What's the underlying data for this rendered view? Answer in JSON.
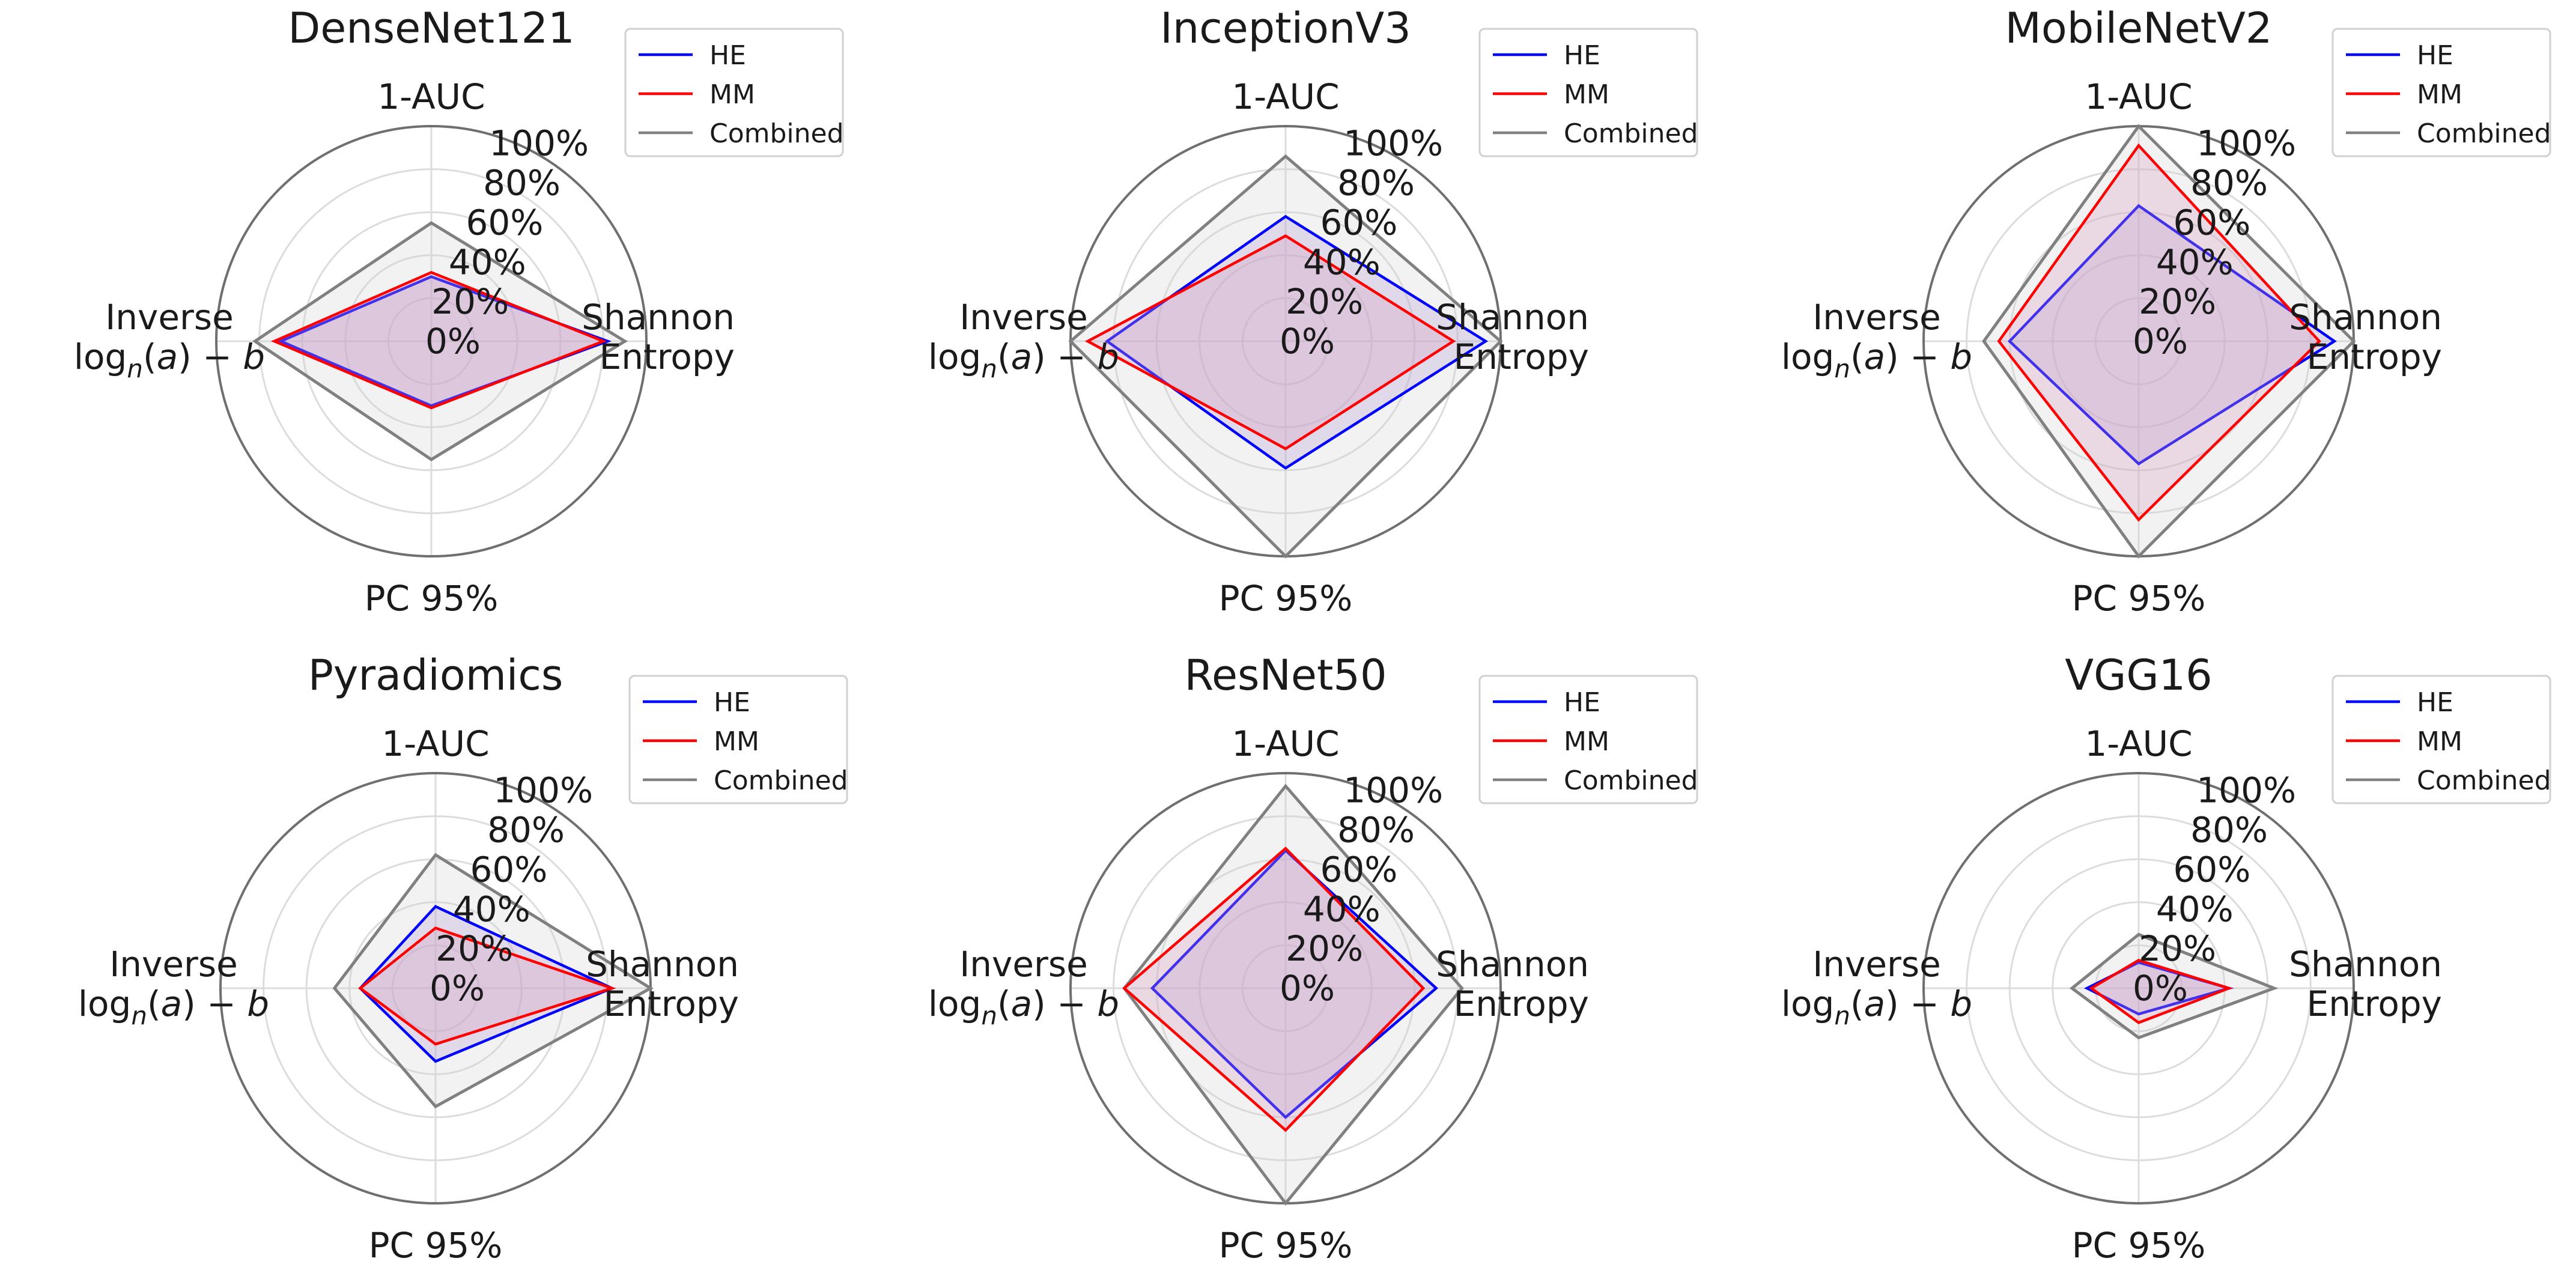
{
  "chart_data": [
    {
      "type": "radar",
      "title": "DenseNet121",
      "axes": [
        "1-AUC",
        "Shannon Entropy",
        "PC 95%",
        "Inverse log_n(a)-b"
      ],
      "rlim": [
        0,
        100
      ],
      "radial_ticks": [
        "0%",
        "20%",
        "40%",
        "60%",
        "80%",
        "100%"
      ],
      "legend": "top-right",
      "series": [
        {
          "name": "Combined",
          "color": "#808080",
          "fill": "#d3d3d3",
          "values": [
            55,
            90,
            55,
            82
          ]
        },
        {
          "name": "HE",
          "color": "#0000ff",
          "fill": "#b6a0d8",
          "values": [
            30,
            82,
            30,
            70
          ]
        },
        {
          "name": "MM",
          "color": "#ff0000",
          "fill": "#d8a0c0",
          "values": [
            32,
            80,
            31,
            73
          ]
        }
      ]
    },
    {
      "type": "radar",
      "title": "InceptionV3",
      "axes": [
        "1-AUC",
        "Shannon Entropy",
        "PC 95%",
        "Inverse log_n(a)-b"
      ],
      "rlim": [
        0,
        100
      ],
      "radial_ticks": [
        "0%",
        "20%",
        "40%",
        "60%",
        "80%",
        "100%"
      ],
      "legend": "top-right",
      "series": [
        {
          "name": "Combined",
          "color": "#808080",
          "fill": "#d3d3d3",
          "values": [
            86,
            100,
            100,
            100
          ]
        },
        {
          "name": "HE",
          "color": "#0000ff",
          "fill": "#b6a0d8",
          "values": [
            58,
            93,
            59,
            83
          ]
        },
        {
          "name": "MM",
          "color": "#ff0000",
          "fill": "#d8a0c0",
          "values": [
            49,
            78,
            50,
            92
          ]
        }
      ]
    },
    {
      "type": "radar",
      "title": "MobileNetV2",
      "axes": [
        "1-AUC",
        "Shannon Entropy",
        "PC 95%",
        "Inverse log_n(a)-b"
      ],
      "rlim": [
        0,
        100
      ],
      "radial_ticks": [
        "0%",
        "20%",
        "40%",
        "60%",
        "80%",
        "100%"
      ],
      "legend": "top-right",
      "series": [
        {
          "name": "Combined",
          "color": "#808080",
          "fill": "#d3d3d3",
          "values": [
            100,
            100,
            100,
            72
          ]
        },
        {
          "name": "HE",
          "color": "#0000ff",
          "fill": "#b6a0d8",
          "values": [
            63,
            91,
            57,
            60
          ]
        },
        {
          "name": "MM",
          "color": "#ff0000",
          "fill": "#d8a0c0",
          "values": [
            91,
            84,
            83,
            65
          ]
        }
      ]
    },
    {
      "type": "radar",
      "title": "Pyradiomics",
      "axes": [
        "1-AUC",
        "Shannon Entropy",
        "PC 95%",
        "Inverse log_n(a)-b"
      ],
      "rlim": [
        0,
        100
      ],
      "radial_ticks": [
        "0%",
        "20%",
        "40%",
        "60%",
        "80%",
        "100%"
      ],
      "legend": "top-right",
      "series": [
        {
          "name": "Combined",
          "color": "#808080",
          "fill": "#d3d3d3",
          "values": [
            62,
            100,
            55,
            47
          ]
        },
        {
          "name": "HE",
          "color": "#0000ff",
          "fill": "#b6a0d8",
          "values": [
            38,
            82,
            34,
            35
          ]
        },
        {
          "name": "MM",
          "color": "#ff0000",
          "fill": "#d8a0c0",
          "values": [
            28,
            82,
            26,
            35
          ]
        }
      ]
    },
    {
      "type": "radar",
      "title": "ResNet50",
      "axes": [
        "1-AUC",
        "Shannon Entropy",
        "PC 95%",
        "Inverse log_n(a)-b"
      ],
      "rlim": [
        0,
        100
      ],
      "radial_ticks": [
        "0%",
        "20%",
        "40%",
        "60%",
        "80%",
        "100%"
      ],
      "legend": "top-right",
      "series": [
        {
          "name": "Combined",
          "color": "#808080",
          "fill": "#d3d3d3",
          "values": [
            94,
            82,
            100,
            75
          ]
        },
        {
          "name": "HE",
          "color": "#0000ff",
          "fill": "#b6a0d8",
          "values": [
            64,
            70,
            60,
            62
          ]
        },
        {
          "name": "MM",
          "color": "#ff0000",
          "fill": "#d8a0c0",
          "values": [
            65,
            64,
            66,
            75
          ]
        }
      ]
    },
    {
      "type": "radar",
      "title": "VGG16",
      "axes": [
        "1-AUC",
        "Shannon Entropy",
        "PC 95%",
        "Inverse log_n(a)-b"
      ],
      "rlim": [
        0,
        100
      ],
      "radial_ticks": [
        "0%",
        "20%",
        "40%",
        "60%",
        "80%",
        "100%"
      ],
      "legend": "top-right",
      "series": [
        {
          "name": "Combined",
          "color": "#808080",
          "fill": "#d3d3d3",
          "values": [
            25,
            63,
            23,
            31
          ]
        },
        {
          "name": "HE",
          "color": "#0000ff",
          "fill": "#b6a0d8",
          "values": [
            12,
            42,
            12,
            24
          ]
        },
        {
          "name": "MM",
          "color": "#ff0000",
          "fill": "#d8a0c0",
          "values": [
            13,
            42,
            16,
            22
          ]
        }
      ]
    }
  ]
}
